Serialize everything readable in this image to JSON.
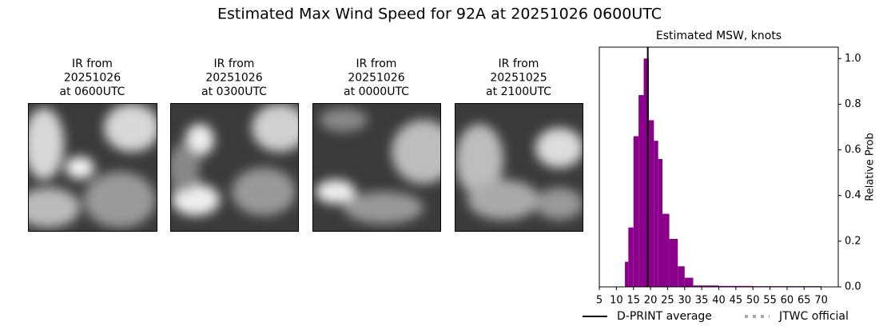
{
  "title": "Estimated Max Wind Speed for 92A at 20251026 0600UTC",
  "panels": [
    {
      "lines": [
        "IR from",
        "20251026",
        "at 0600UTC"
      ]
    },
    {
      "lines": [
        "IR from",
        "20251026",
        "at 0300UTC"
      ]
    },
    {
      "lines": [
        "IR from",
        "20251026",
        "at 0000UTC"
      ]
    },
    {
      "lines": [
        "IR from",
        "20251025",
        "at 2100UTC"
      ]
    }
  ],
  "chart_data": {
    "type": "histogram",
    "title": "Estimated MSW, knots",
    "ylabel": "Relative Prob",
    "bins": [
      12.5,
      13.5,
      15,
      16.5,
      18,
      19.5,
      21,
      22.25,
      23.5,
      25.5,
      28,
      30,
      32.5,
      40,
      50,
      60,
      70
    ],
    "values": [
      0.11,
      0.26,
      0.66,
      0.84,
      1.0,
      0.73,
      0.64,
      0.56,
      0.32,
      0.21,
      0.09,
      0.04,
      0.006,
      0.004,
      0.003,
      0.003
    ],
    "color": "#8b008b",
    "average": 19.2,
    "xlim": [
      5,
      75
    ],
    "ylim": [
      0,
      1.05
    ],
    "xticks": [
      5,
      10,
      15,
      20,
      25,
      30,
      35,
      40,
      45,
      50,
      55,
      60,
      65,
      70
    ],
    "yticks": [
      {
        "value": 0,
        "label": "0.0"
      },
      {
        "value": 0.2,
        "label": "0.2"
      },
      {
        "value": 0.4,
        "label": "0.4"
      },
      {
        "value": 0.6,
        "label": "0.6"
      },
      {
        "value": 0.8,
        "label": "0.8"
      },
      {
        "value": 1,
        "label": "1.0"
      }
    ],
    "legend": [
      {
        "name": "D-PRINT average",
        "color": "#000000"
      },
      {
        "name": "JTWC official",
        "color": "#aaaaaa"
      }
    ]
  }
}
